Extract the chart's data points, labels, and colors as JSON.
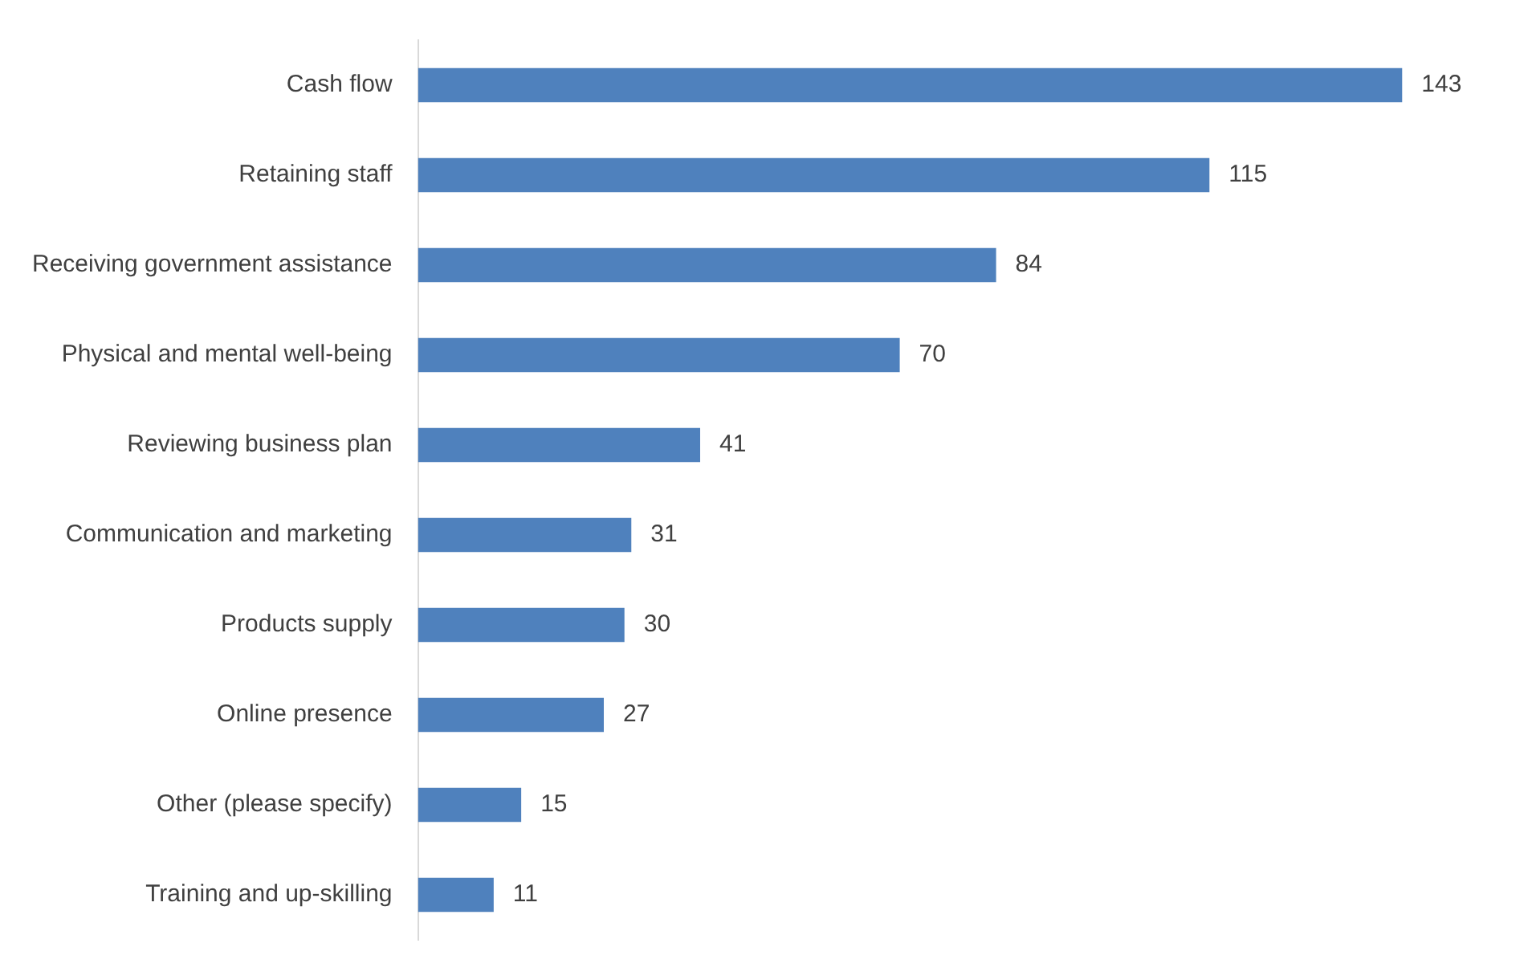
{
  "chart_data": {
    "type": "bar",
    "orientation": "horizontal",
    "data_labels": true,
    "tick_labels": "y",
    "categories": [
      "Cash flow",
      "Retaining staff",
      "Receiving government assistance",
      "Physical and mental well-being",
      "Reviewing business plan",
      "Communication and marketing",
      "Products supply",
      "Online presence",
      "Other (please specify)",
      "Training and up-skilling"
    ],
    "values": [
      143,
      115,
      84,
      70,
      41,
      31,
      30,
      27,
      15,
      11
    ],
    "color": "#4f81bd"
  }
}
